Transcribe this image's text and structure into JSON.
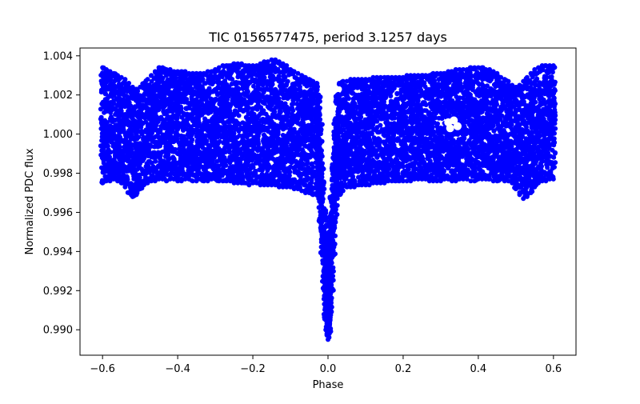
{
  "chart_data": {
    "type": "scatter",
    "title": "TIC 0156577475, period 3.1257 days",
    "xlabel": "Phase",
    "ylabel": "Normalized PDC flux",
    "xlim": [
      -0.66,
      0.66
    ],
    "ylim": [
      0.9887,
      1.0044
    ],
    "xticks": [
      -0.6,
      -0.4,
      -0.2,
      0.0,
      0.2,
      0.4,
      0.6
    ],
    "xtick_labels": [
      "−0.6",
      "−0.4",
      "−0.2",
      "0.0",
      "0.2",
      "0.4",
      "0.6"
    ],
    "yticks": [
      0.99,
      0.992,
      0.994,
      0.996,
      0.998,
      1.0,
      1.002,
      1.004
    ],
    "ytick_labels": [
      "0.990",
      "0.992",
      "0.994",
      "0.996",
      "0.998",
      "1.000",
      "1.002",
      "1.004"
    ],
    "grid": false,
    "legend": "none",
    "marker_color": "#0000ff",
    "series": [
      {
        "x": [
          -0.6,
          -0.59,
          -0.58,
          -0.57,
          -0.56,
          -0.55,
          -0.54,
          -0.53,
          -0.52,
          -0.51,
          -0.5,
          -0.49,
          -0.48,
          -0.47,
          -0.46,
          -0.45,
          -0.44,
          -0.43,
          -0.42,
          -0.41,
          -0.4,
          -0.39,
          -0.38,
          -0.37,
          -0.36,
          -0.35,
          -0.34,
          -0.33,
          -0.32,
          -0.31,
          -0.3,
          -0.29,
          -0.28,
          -0.27,
          -0.26,
          -0.25,
          -0.24,
          -0.23,
          -0.22,
          -0.21,
          -0.2,
          -0.19,
          -0.18,
          -0.17,
          -0.16,
          -0.15,
          -0.14,
          -0.13,
          -0.12,
          -0.11,
          -0.1,
          -0.09,
          -0.08,
          -0.07,
          -0.06,
          -0.05,
          -0.04,
          -0.03,
          -0.025,
          -0.02,
          -0.015,
          -0.01,
          -0.006,
          -0.003,
          0.0,
          0.003,
          0.006,
          0.01,
          0.015,
          0.02,
          0.025,
          0.03,
          0.04,
          0.05,
          0.06,
          0.07,
          0.08,
          0.09,
          0.1,
          0.11,
          0.12,
          0.13,
          0.14,
          0.15,
          0.16,
          0.17,
          0.18,
          0.19,
          0.2,
          0.21,
          0.22,
          0.23,
          0.24,
          0.25,
          0.26,
          0.27,
          0.28,
          0.29,
          0.3,
          0.31,
          0.32,
          0.33,
          0.34,
          0.35,
          0.36,
          0.37,
          0.38,
          0.39,
          0.4,
          0.41,
          0.42,
          0.43,
          0.44,
          0.45,
          0.46,
          0.47,
          0.48,
          0.49,
          0.5,
          0.51,
          0.52,
          0.53,
          0.54,
          0.55,
          0.56,
          0.57,
          0.58,
          0.59,
          0.6
        ],
        "y_low": [
          0.9975,
          0.9976,
          0.9976,
          0.9977,
          0.9976,
          0.9975,
          0.9973,
          0.997,
          0.9968,
          0.9969,
          0.9972,
          0.9974,
          0.9975,
          0.9976,
          0.9976,
          0.9977,
          0.9977,
          0.9976,
          0.9977,
          0.9977,
          0.9976,
          0.9976,
          0.9977,
          0.9977,
          0.9976,
          0.9976,
          0.9977,
          0.9976,
          0.9976,
          0.9977,
          0.9977,
          0.9976,
          0.9976,
          0.9976,
          0.9976,
          0.9975,
          0.9975,
          0.9975,
          0.9975,
          0.9974,
          0.9975,
          0.9975,
          0.9974,
          0.9974,
          0.9974,
          0.9974,
          0.9974,
          0.9973,
          0.9973,
          0.9973,
          0.9973,
          0.9972,
          0.9972,
          0.9971,
          0.997,
          0.997,
          0.9969,
          0.9969,
          0.9967,
          0.9955,
          0.9938,
          0.992,
          0.9905,
          0.9898,
          0.9895,
          0.9898,
          0.9905,
          0.992,
          0.9938,
          0.9955,
          0.9967,
          0.9969,
          0.9971,
          0.9973,
          0.9973,
          0.9973,
          0.9974,
          0.9974,
          0.9974,
          0.9974,
          0.9975,
          0.9975,
          0.9975,
          0.9975,
          0.9976,
          0.9976,
          0.9976,
          0.9976,
          0.9976,
          0.9976,
          0.9976,
          0.9977,
          0.9977,
          0.9977,
          0.9977,
          0.9976,
          0.9976,
          0.9976,
          0.9976,
          0.9977,
          0.9977,
          0.9976,
          0.9976,
          0.9977,
          0.9977,
          0.9977,
          0.9976,
          0.9976,
          0.9977,
          0.9977,
          0.9977,
          0.9977,
          0.9976,
          0.9976,
          0.9977,
          0.9976,
          0.9976,
          0.9975,
          0.9972,
          0.9969,
          0.9967,
          0.9968,
          0.997,
          0.9973,
          0.9975,
          0.9976,
          0.9976,
          0.9977,
          0.9977
        ],
        "y_high": [
          1.0034,
          1.0033,
          1.0032,
          1.0031,
          1.003,
          1.0029,
          1.0028,
          1.0026,
          1.0024,
          1.0023,
          1.0024,
          1.0026,
          1.0028,
          1.003,
          1.0032,
          1.0034,
          1.0034,
          1.0033,
          1.0033,
          1.0032,
          1.0032,
          1.0032,
          1.0032,
          1.0031,
          1.0031,
          1.0031,
          1.0031,
          1.0031,
          1.0032,
          1.0032,
          1.0033,
          1.0034,
          1.0035,
          1.0035,
          1.0035,
          1.0036,
          1.0036,
          1.0036,
          1.0035,
          1.0035,
          1.0035,
          1.0035,
          1.0036,
          1.0037,
          1.0037,
          1.0038,
          1.0038,
          1.0037,
          1.0036,
          1.0035,
          1.0033,
          1.0032,
          1.0031,
          1.003,
          1.0029,
          1.0028,
          1.0027,
          1.0026,
          1.002,
          1.0005,
          0.9985,
          0.9962,
          0.9948,
          0.9945,
          0.9948,
          0.995,
          0.9958,
          0.9972,
          0.999,
          1.0008,
          1.002,
          1.0026,
          1.0027,
          1.0027,
          1.0028,
          1.0028,
          1.0028,
          1.0028,
          1.0028,
          1.0028,
          1.0029,
          1.0029,
          1.0029,
          1.0029,
          1.0029,
          1.0029,
          1.0029,
          1.0029,
          1.0029,
          1.003,
          1.003,
          1.003,
          1.003,
          1.003,
          1.003,
          1.003,
          1.0031,
          1.0031,
          1.0031,
          1.0031,
          1.0032,
          1.0032,
          1.0033,
          1.0033,
          1.0033,
          1.0033,
          1.0034,
          1.0034,
          1.0034,
          1.0034,
          1.0033,
          1.0033,
          1.0032,
          1.0031,
          1.0029,
          1.0028,
          1.0027,
          1.0025,
          1.0024,
          1.0025,
          1.0027,
          1.0029,
          1.0031,
          1.0033,
          1.0034,
          1.0035,
          1.0035,
          1.0035,
          1.0035
        ]
      }
    ]
  }
}
